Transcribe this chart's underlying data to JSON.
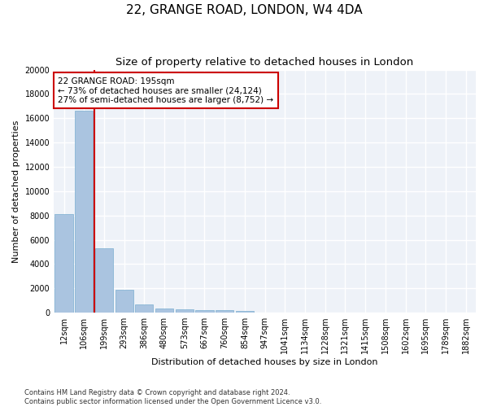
{
  "title": "22, GRANGE ROAD, LONDON, W4 4DA",
  "subtitle": "Size of property relative to detached houses in London",
  "xlabel": "Distribution of detached houses by size in London",
  "ylabel": "Number of detached properties",
  "categories": [
    "12sqm",
    "106sqm",
    "199sqm",
    "293sqm",
    "386sqm",
    "480sqm",
    "573sqm",
    "667sqm",
    "760sqm",
    "854sqm",
    "947sqm",
    "1041sqm",
    "1134sqm",
    "1228sqm",
    "1321sqm",
    "1415sqm",
    "1508sqm",
    "1602sqm",
    "1695sqm",
    "1789sqm",
    "1882sqm"
  ],
  "values": [
    8100,
    16600,
    5300,
    1850,
    700,
    350,
    270,
    220,
    180,
    130,
    0,
    0,
    0,
    0,
    0,
    0,
    0,
    0,
    0,
    0,
    0
  ],
  "bar_color": "#aac4e0",
  "bar_edge_color": "#7aaed0",
  "vline_color": "#cc0000",
  "annotation_text": "22 GRANGE ROAD: 195sqm\n← 73% of detached houses are smaller (24,124)\n27% of semi-detached houses are larger (8,752) →",
  "annotation_box_color": "#ffffff",
  "annotation_box_edge_color": "#cc0000",
  "ylim": [
    0,
    20000
  ],
  "yticks": [
    0,
    2000,
    4000,
    6000,
    8000,
    10000,
    12000,
    14000,
    16000,
    18000,
    20000
  ],
  "footer_text": "Contains HM Land Registry data © Crown copyright and database right 2024.\nContains public sector information licensed under the Open Government Licence v3.0.",
  "background_color": "#eef2f8",
  "grid_color": "#ffffff",
  "title_fontsize": 11,
  "subtitle_fontsize": 9.5,
  "axis_label_fontsize": 8,
  "tick_fontsize": 7,
  "annotation_fontsize": 7.5,
  "footer_fontsize": 6
}
